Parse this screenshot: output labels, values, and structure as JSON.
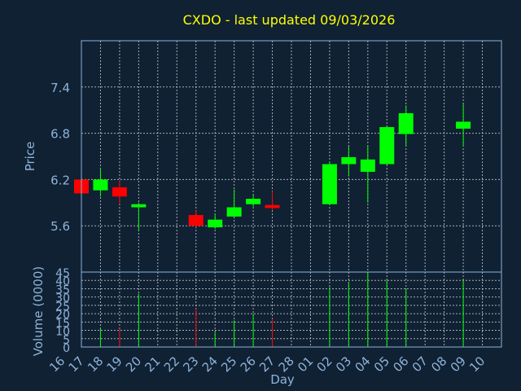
{
  "chart_data": {
    "type": "candlestick",
    "title": "CXDO - last updated 09/03/2026",
    "xlabel": "Day",
    "price_panel": {
      "ylabel": "Price",
      "yticks": [
        5.6,
        6.2,
        6.8,
        7.4
      ],
      "ylim": [
        5.0,
        8.0
      ]
    },
    "volume_panel": {
      "ylabel": "Volume (0000)",
      "yticks": [
        0,
        5,
        10,
        15,
        20,
        25,
        30,
        35,
        40,
        45
      ],
      "ylim": [
        0,
        45
      ]
    },
    "x_tick_labels": [
      "16",
      "17",
      "18",
      "19",
      "20",
      "21",
      "22",
      "23",
      "24",
      "25",
      "26",
      "27",
      "28",
      "01",
      "02",
      "03",
      "04",
      "05",
      "06",
      "07",
      "08",
      "09",
      "10"
    ],
    "colors": {
      "up": "#00ff00",
      "down": "#ff0000",
      "background": "#0f2133",
      "text": "#8fb3d9",
      "title": "#ffff00"
    },
    "candles": [
      {
        "day": "17",
        "open": 6.2,
        "high": 6.3,
        "low": 5.98,
        "close": 6.02,
        "volume": 17
      },
      {
        "day": "18",
        "open": 6.06,
        "high": 6.34,
        "low": 5.98,
        "close": 6.2,
        "volume": 11
      },
      {
        "day": "19",
        "open": 6.1,
        "high": 6.19,
        "low": 5.88,
        "close": 5.98,
        "volume": 11
      },
      {
        "day": "20",
        "open": 5.84,
        "high": 5.9,
        "low": 5.54,
        "close": 5.88,
        "volume": 32
      },
      {
        "day": "23",
        "open": 5.74,
        "high": 5.8,
        "low": 5.58,
        "close": 5.6,
        "volume": 23
      },
      {
        "day": "24",
        "open": 5.58,
        "high": 5.75,
        "low": 5.56,
        "close": 5.68,
        "volume": 9
      },
      {
        "day": "25",
        "open": 5.72,
        "high": 6.07,
        "low": 5.7,
        "close": 5.84,
        "volume": 16
      },
      {
        "day": "26",
        "open": 5.88,
        "high": 6.0,
        "low": 5.85,
        "close": 5.95,
        "volume": 20
      },
      {
        "day": "27",
        "open": 5.87,
        "high": 6.05,
        "low": 5.8,
        "close": 5.83,
        "volume": 17
      },
      {
        "day": "02",
        "open": 5.88,
        "high": 6.43,
        "low": 5.87,
        "close": 6.4,
        "volume": 36
      },
      {
        "day": "03",
        "open": 6.4,
        "high": 6.63,
        "low": 6.24,
        "close": 6.49,
        "volume": 39
      },
      {
        "day": "04",
        "open": 6.3,
        "high": 6.63,
        "low": 5.9,
        "close": 6.46,
        "volume": 45
      },
      {
        "day": "05",
        "open": 6.4,
        "high": 6.89,
        "low": 6.39,
        "close": 6.88,
        "volume": 40
      },
      {
        "day": "06",
        "open": 6.79,
        "high": 7.16,
        "low": 6.63,
        "close": 7.06,
        "volume": 35
      },
      {
        "day": "09",
        "open": 6.86,
        "high": 7.18,
        "low": 6.63,
        "close": 6.95,
        "volume": 40
      }
    ]
  }
}
